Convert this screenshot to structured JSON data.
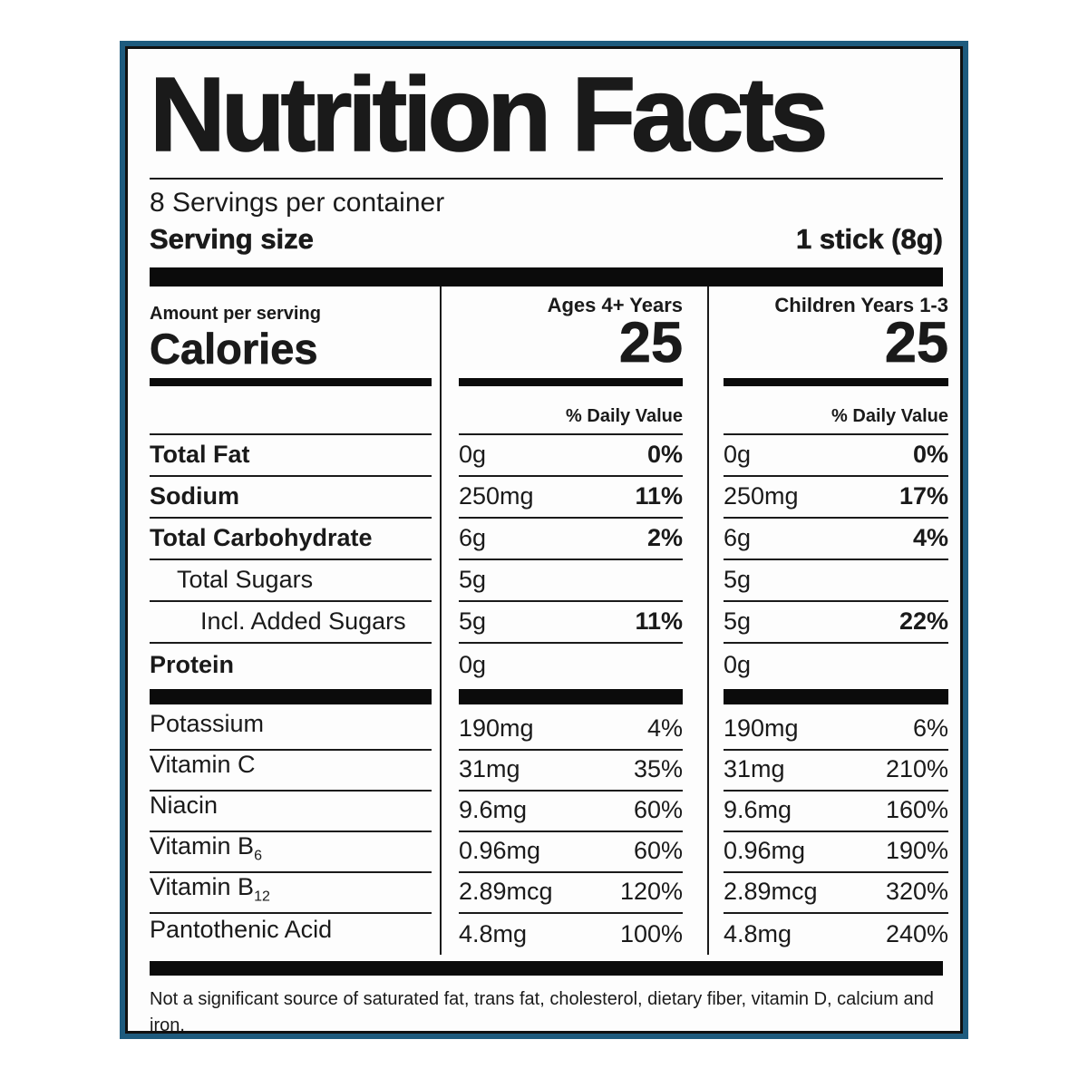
{
  "label": {
    "title": "Nutrition Facts",
    "servings_per_container": "8 Servings per container",
    "serving_size_label": "Serving size",
    "serving_size_value": "1 stick (8g)",
    "amount_per_serving": "Amount per serving",
    "calories_label": "Calories",
    "columns": [
      {
        "header": "Ages 4+ Years",
        "calories": "25",
        "dv_header": "% Daily Value"
      },
      {
        "header": "Children Years 1-3",
        "calories": "25",
        "dv_header": "% Daily Value"
      }
    ],
    "core_rows": [
      {
        "name": "Total Fat",
        "ages": {
          "amount": "0g",
          "dv": "0%"
        },
        "children": {
          "amount": "0g",
          "dv": "0%"
        }
      },
      {
        "name": "Sodium",
        "ages": {
          "amount": "250mg",
          "dv": "11%"
        },
        "children": {
          "amount": "250mg",
          "dv": "17%"
        }
      },
      {
        "name": "Total Carbohydrate",
        "ages": {
          "amount": "6g",
          "dv": "2%"
        },
        "children": {
          "amount": "6g",
          "dv": "4%"
        }
      },
      {
        "name": "Total Sugars",
        "ages": {
          "amount": "5g",
          "dv": ""
        },
        "children": {
          "amount": "5g",
          "dv": ""
        }
      },
      {
        "name": "Incl. Added Sugars",
        "ages": {
          "amount": "5g",
          "dv": "11%"
        },
        "children": {
          "amount": "5g",
          "dv": "22%"
        }
      },
      {
        "name": "Protein",
        "ages": {
          "amount": "0g",
          "dv": ""
        },
        "children": {
          "amount": "0g",
          "dv": ""
        }
      }
    ],
    "vitamin_rows": [
      {
        "name": "Potassium",
        "sub": "",
        "ages": {
          "amount": "190mg",
          "dv": "4%"
        },
        "children": {
          "amount": "190mg",
          "dv": "6%"
        }
      },
      {
        "name": "Vitamin C",
        "sub": "",
        "ages": {
          "amount": "31mg",
          "dv": "35%"
        },
        "children": {
          "amount": "31mg",
          "dv": "210%"
        }
      },
      {
        "name": "Niacin",
        "sub": "",
        "ages": {
          "amount": "9.6mg",
          "dv": "60%"
        },
        "children": {
          "amount": "9.6mg",
          "dv": "160%"
        }
      },
      {
        "name": "Vitamin B",
        "sub": "6",
        "ages": {
          "amount": "0.96mg",
          "dv": "60%"
        },
        "children": {
          "amount": "0.96mg",
          "dv": "190%"
        }
      },
      {
        "name": "Vitamin B",
        "sub": "12",
        "ages": {
          "amount": "2.89mcg",
          "dv": "120%"
        },
        "children": {
          "amount": "2.89mcg",
          "dv": "320%"
        }
      },
      {
        "name": "Pantothenic Acid",
        "sub": "",
        "ages": {
          "amount": "4.8mg",
          "dv": "100%"
        },
        "children": {
          "amount": "4.8mg",
          "dv": "240%"
        }
      }
    ],
    "footnote": "Not a significant source of saturated fat, trans fat, cholesterol, dietary fiber, vitamin D, calcium and iron."
  },
  "colors": {
    "border_blue": "#1e5b7e",
    "text_black": "#1a1a1a",
    "bar_black": "#0b0b0b",
    "background": "#fdfdfd"
  }
}
